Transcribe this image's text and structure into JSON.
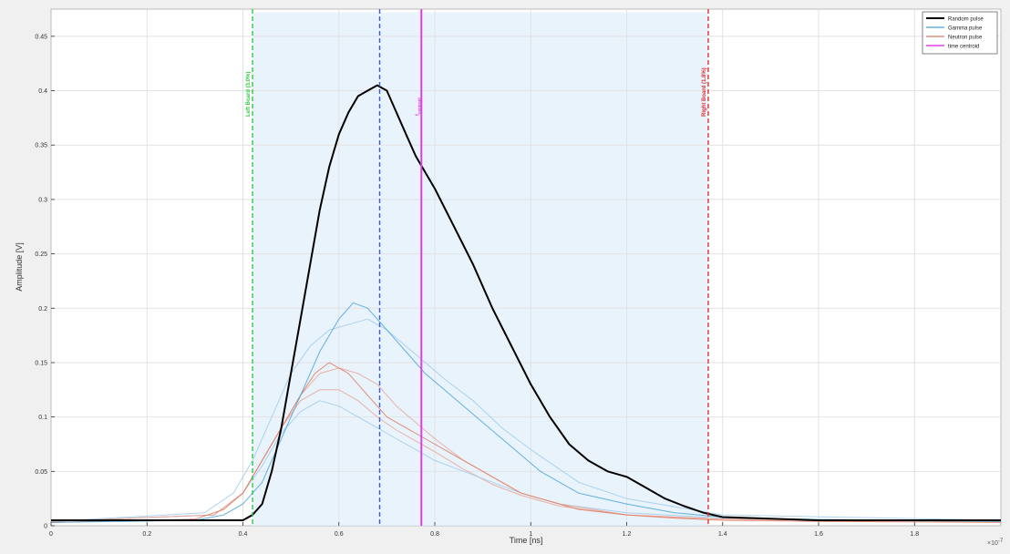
{
  "chart_data": {
    "type": "line",
    "title": "",
    "xlabel": "Time [ns]",
    "ylabel": "Amplitude [V]",
    "x_exponent_label": "×10",
    "x_exponent_power": "-7",
    "xlim": [
      0,
      1.98
    ],
    "ylim": [
      0,
      0.475
    ],
    "grid": true,
    "legend_position": "top-right",
    "x_ticks": [
      "0",
      "0.2",
      "0.4",
      "0.6",
      "0.8",
      "1",
      "1.2",
      "1.4",
      "1.6",
      "1.8"
    ],
    "y_ticks": [
      "0",
      "0.05",
      "0.1",
      "0.15",
      "0.2",
      "0.25",
      "0.3",
      "0.35",
      "0.4",
      "0.45"
    ],
    "x_tick_values": [
      0,
      0.2,
      0.4,
      0.6,
      0.8,
      1.0,
      1.2,
      1.4,
      1.6,
      1.8
    ],
    "y_tick_values": [
      0,
      0.05,
      0.1,
      0.15,
      0.2,
      0.25,
      0.3,
      0.35,
      0.4,
      0.45
    ],
    "series": [
      {
        "name": "Random pulse",
        "color": "#000000",
        "x": [
          0,
          0.2,
          0.4,
          0.42,
          0.44,
          0.46,
          0.48,
          0.5,
          0.52,
          0.54,
          0.56,
          0.58,
          0.6,
          0.62,
          0.64,
          0.66,
          0.68,
          0.7,
          0.72,
          0.74,
          0.76,
          0.78,
          0.8,
          0.84,
          0.88,
          0.92,
          0.96,
          1.0,
          1.04,
          1.08,
          1.12,
          1.16,
          1.2,
          1.24,
          1.28,
          1.32,
          1.36,
          1.4,
          1.6,
          1.8,
          1.98
        ],
        "y": [
          0.005,
          0.005,
          0.005,
          0.01,
          0.02,
          0.05,
          0.09,
          0.14,
          0.19,
          0.24,
          0.29,
          0.33,
          0.36,
          0.38,
          0.395,
          0.4,
          0.405,
          0.4,
          0.38,
          0.36,
          0.34,
          0.325,
          0.31,
          0.275,
          0.24,
          0.2,
          0.165,
          0.13,
          0.1,
          0.075,
          0.06,
          0.05,
          0.045,
          0.035,
          0.025,
          0.018,
          0.012,
          0.008,
          0.005,
          0.005,
          0.005
        ]
      },
      {
        "name": "Gamma pulse",
        "color": "#4aa3df",
        "x": [
          0,
          0.3,
          0.36,
          0.4,
          0.44,
          0.48,
          0.52,
          0.56,
          0.6,
          0.63,
          0.66,
          0.7,
          0.74,
          0.78,
          0.82,
          0.86,
          0.9,
          0.94,
          0.98,
          1.02,
          1.06,
          1.1,
          1.2,
          1.3,
          1.4,
          1.6,
          1.98
        ],
        "y": [
          0.003,
          0.005,
          0.01,
          0.02,
          0.04,
          0.08,
          0.12,
          0.16,
          0.19,
          0.205,
          0.2,
          0.18,
          0.16,
          0.14,
          0.125,
          0.11,
          0.095,
          0.08,
          0.065,
          0.05,
          0.04,
          0.03,
          0.02,
          0.012,
          0.008,
          0.005,
          0.004
        ]
      },
      {
        "name": "Neutron pulse",
        "color": "#e07a5f",
        "x": [
          0,
          0.3,
          0.36,
          0.4,
          0.44,
          0.48,
          0.52,
          0.55,
          0.58,
          0.62,
          0.66,
          0.7,
          0.74,
          0.78,
          0.82,
          0.86,
          0.9,
          0.94,
          0.98,
          1.02,
          1.06,
          1.1,
          1.2,
          1.3,
          1.4,
          1.6,
          1.98
        ],
        "y": [
          0.003,
          0.006,
          0.015,
          0.03,
          0.06,
          0.09,
          0.12,
          0.14,
          0.15,
          0.14,
          0.12,
          0.1,
          0.09,
          0.08,
          0.07,
          0.06,
          0.05,
          0.04,
          0.03,
          0.025,
          0.02,
          0.015,
          0.01,
          0.007,
          0.005,
          0.004,
          0.003
        ]
      }
    ],
    "extra_traces": [
      {
        "color": "#e8a090",
        "x": [
          0,
          0.34,
          0.4,
          0.44,
          0.48,
          0.52,
          0.56,
          0.6,
          0.64,
          0.68,
          0.72,
          0.76,
          0.8,
          0.86,
          0.92,
          0.98,
          1.06,
          1.2,
          1.4,
          1.98
        ],
        "y": [
          0.004,
          0.01,
          0.03,
          0.06,
          0.09,
          0.115,
          0.125,
          0.125,
          0.115,
          0.1,
          0.088,
          0.078,
          0.068,
          0.052,
          0.038,
          0.028,
          0.018,
          0.01,
          0.006,
          0.004
        ]
      },
      {
        "color": "#9cc8ea",
        "x": [
          0,
          0.34,
          0.4,
          0.44,
          0.48,
          0.52,
          0.56,
          0.6,
          0.64,
          0.68,
          0.72,
          0.76,
          0.8,
          0.86,
          0.92,
          0.98,
          1.06,
          1.2,
          1.4,
          1.98
        ],
        "y": [
          0.004,
          0.01,
          0.03,
          0.055,
          0.085,
          0.105,
          0.115,
          0.11,
          0.1,
          0.09,
          0.08,
          0.07,
          0.06,
          0.05,
          0.04,
          0.03,
          0.02,
          0.012,
          0.007,
          0.004
        ]
      },
      {
        "color": "#9cc8ea",
        "x": [
          0,
          0.32,
          0.38,
          0.42,
          0.46,
          0.5,
          0.54,
          0.58,
          0.62,
          0.66,
          0.7,
          0.74,
          0.78,
          0.82,
          0.88,
          0.94,
          1.0,
          1.1,
          1.2,
          1.4,
          1.98
        ],
        "y": [
          0.004,
          0.012,
          0.03,
          0.06,
          0.1,
          0.14,
          0.165,
          0.18,
          0.185,
          0.19,
          0.18,
          0.165,
          0.15,
          0.135,
          0.115,
          0.09,
          0.07,
          0.04,
          0.025,
          0.01,
          0.005
        ]
      },
      {
        "color": "#e8a090",
        "x": [
          0,
          0.34,
          0.4,
          0.44,
          0.48,
          0.52,
          0.56,
          0.6,
          0.64,
          0.68,
          0.72,
          0.76,
          0.8,
          0.86,
          0.92,
          0.98,
          1.06,
          1.2,
          1.4,
          1.98
        ],
        "y": [
          0.004,
          0.01,
          0.03,
          0.06,
          0.09,
          0.12,
          0.14,
          0.145,
          0.14,
          0.13,
          0.11,
          0.095,
          0.08,
          0.06,
          0.045,
          0.03,
          0.02,
          0.01,
          0.006,
          0.004
        ]
      }
    ],
    "shaded_region": {
      "x0": 0.42,
      "x1": 1.37,
      "y_top": 0.472,
      "color": "#e3f0fb"
    },
    "vertical_lines": [
      {
        "x": 0.42,
        "color": "#2ecc40",
        "style": "dashed",
        "label": "Left Board (3.0%)"
      },
      {
        "x": 0.685,
        "color": "#3b5bdb",
        "style": "dashed",
        "label": ""
      },
      {
        "x": 0.772,
        "color": "#e040e0",
        "style": "solid",
        "label": "t",
        "label_sub": "centroid"
      },
      {
        "x": 1.37,
        "color": "#e03131",
        "style": "dashed",
        "label": "Right Board (1.8%)"
      }
    ],
    "legend": [
      {
        "name": "Random pulse",
        "color": "#000000"
      },
      {
        "name": "Gamma pulse",
        "color": "#4aa3df"
      },
      {
        "name": "Neutron pulse",
        "color": "#e07a5f"
      },
      {
        "name": "time centroid",
        "color": "#e040e0"
      }
    ]
  }
}
